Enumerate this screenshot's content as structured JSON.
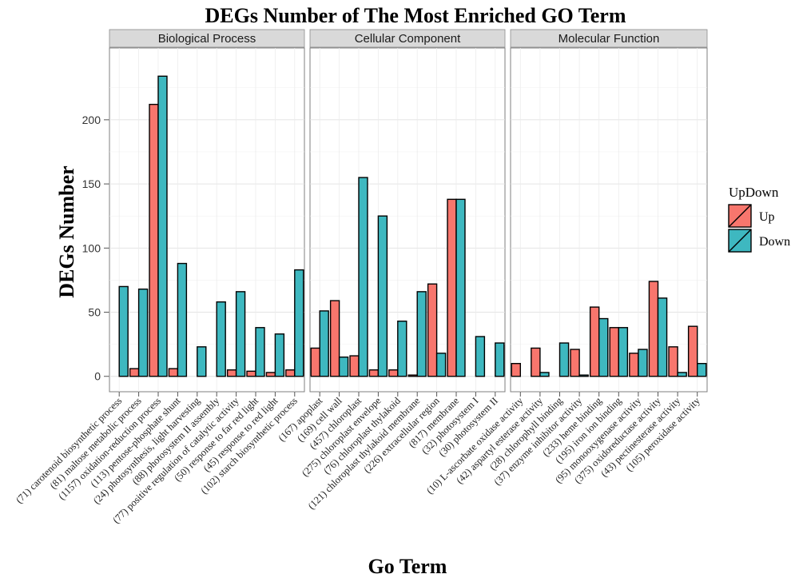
{
  "chart_data": {
    "type": "bar",
    "title": "DEGs Number of The Most Enriched GO Term",
    "xlabel": "Go Term",
    "ylabel": "DEGs Number",
    "ylim": [
      -12,
      256
    ],
    "yticks": [
      0,
      50,
      100,
      150,
      200
    ],
    "grid": true,
    "legend": {
      "title": "UpDown",
      "position": "right",
      "entries": [
        {
          "name": "Up",
          "color": "#F8766D"
        },
        {
          "name": "Down",
          "color": "#3EB8C0"
        }
      ]
    },
    "series_names": [
      "Up",
      "Down"
    ],
    "panels": [
      {
        "name": "Biological Process",
        "categories": [
          "(71) carotenoid biosynthetic process",
          "(81) maltose metabolic process",
          "(1157) oxidation-reduction process",
          "(113) pentose-phosphate shunt",
          "(24) photosynthesis, light harvesting",
          "(88) photosystem II assembly",
          "(77) positive regulation of catalytic activity",
          "(50) response to far red light",
          "(45) response to red light",
          "(102) starch biosynthetic process"
        ],
        "up": [
          0,
          6,
          212,
          6,
          0,
          0,
          5,
          4,
          3,
          5
        ],
        "down": [
          70,
          68,
          234,
          88,
          23,
          58,
          66,
          38,
          33,
          83
        ]
      },
      {
        "name": "Cellular Component",
        "categories": [
          "(167) apoplast",
          "(169) cell wall",
          "(457) chloroplast",
          "(275) chloroplast envelope",
          "(76) chloroplast thylakoid",
          "(121) chloroplast thylakoid membrane",
          "(226) extracellular region",
          "(817) membrane",
          "(32) photosystem I",
          "(30) photosystem II"
        ],
        "up": [
          22,
          59,
          16,
          5,
          5,
          1,
          72,
          138,
          0,
          0
        ],
        "down": [
          51,
          15,
          155,
          125,
          43,
          66,
          18,
          138,
          31,
          26
        ]
      },
      {
        "name": "Molecular Function",
        "categories": [
          "(10) L-ascorbate oxidase activity",
          "(42) aspartyl esterase activity",
          "(28) chlorophyll binding",
          "(37) enzyme inhibitor activity",
          "(233) heme binding",
          "(195) iron ion binding",
          "(95) monooxygenase activity",
          "(375) oxidoreductase activity",
          "(43) pectinesterase activity",
          "(105) peroxidase activity"
        ],
        "up": [
          10,
          22,
          0,
          21,
          54,
          38,
          18,
          74,
          23,
          39
        ],
        "down": [
          0,
          3,
          26,
          1,
          45,
          38,
          21,
          61,
          3,
          10
        ]
      }
    ]
  }
}
